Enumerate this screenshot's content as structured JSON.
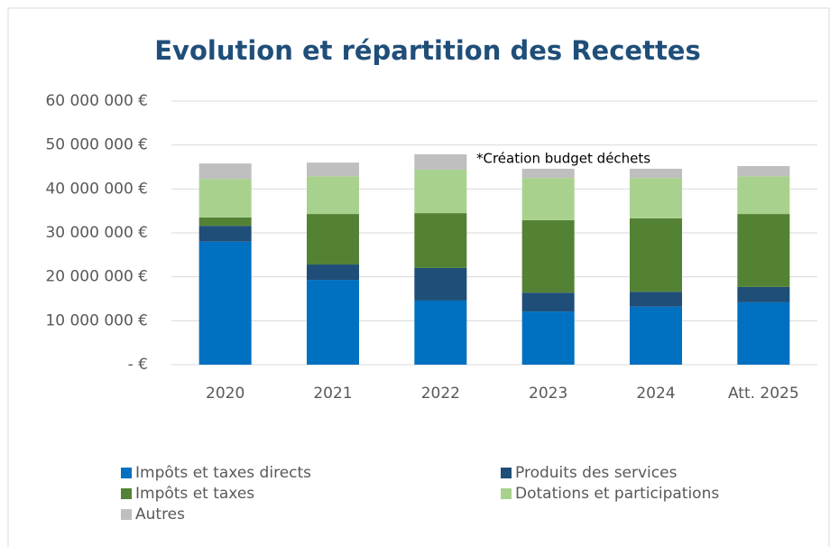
{
  "chart_data": {
    "type": "stacked_bar",
    "title": "Evolution et répartition des Recettes",
    "categories": [
      "2020",
      "2021",
      "2022",
      "2023",
      "2024",
      "Att. 2025"
    ],
    "series": [
      {
        "name": "Impôts et taxes directs",
        "color": "#0070c0",
        "values": [
          28000000,
          19300000,
          14600000,
          12100000,
          13200000,
          14200000
        ]
      },
      {
        "name": "Produits des services",
        "color": "#1f4e79",
        "values": [
          3600000,
          3500000,
          7400000,
          4300000,
          3400000,
          3500000
        ]
      },
      {
        "name": "Impôts et taxes",
        "color": "#548235",
        "values": [
          1900000,
          11500000,
          12500000,
          16500000,
          16700000,
          16600000
        ]
      },
      {
        "name": "Dotations et participations",
        "color": "#a9d18e",
        "values": [
          8800000,
          8600000,
          9900000,
          9600000,
          9200000,
          8600000
        ]
      },
      {
        "name": "Autres",
        "color": "#bfbfbf",
        "values": [
          3500000,
          3100000,
          3500000,
          2100000,
          2100000,
          2300000
        ]
      }
    ],
    "ylim": [
      0,
      60000000
    ],
    "yticks": [
      {
        "value": 0,
        "label": "-  €"
      },
      {
        "value": 10000000,
        "label": "10 000 000 €"
      },
      {
        "value": 20000000,
        "label": "20 000 000 €"
      },
      {
        "value": 30000000,
        "label": "30 000 000 €"
      },
      {
        "value": 40000000,
        "label": "40 000 000 €"
      },
      {
        "value": 50000000,
        "label": "50 000 000 €"
      },
      {
        "value": 60000000,
        "label": "60 000 000 €"
      }
    ],
    "grid": true,
    "annotation": "*Création budget déchets"
  }
}
